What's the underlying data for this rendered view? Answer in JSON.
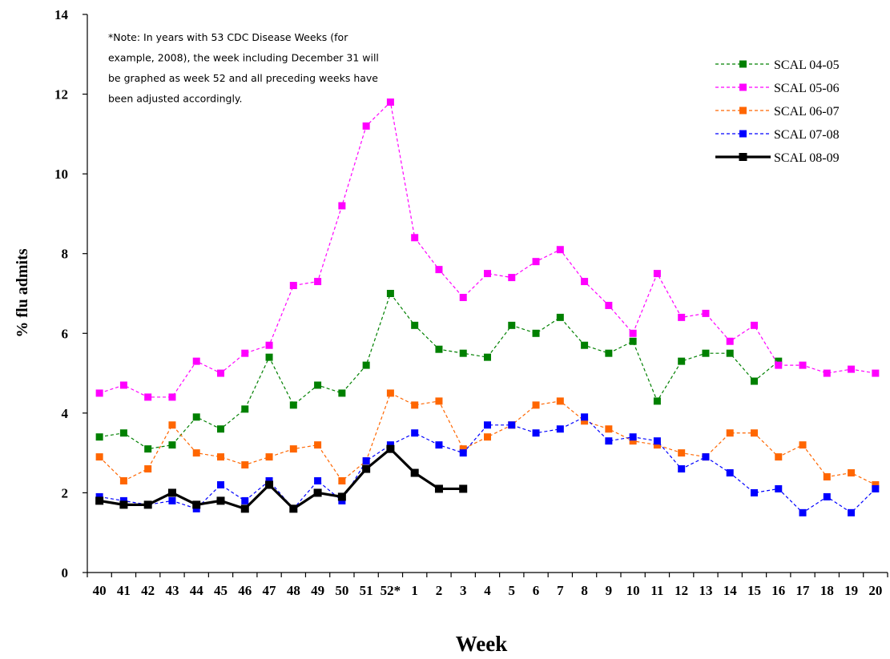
{
  "chart_data": {
    "type": "line",
    "xlabel": "Week",
    "ylabel": "% flu admits",
    "ylim": [
      0,
      14
    ],
    "yticks": [
      "0",
      "2",
      "4",
      "6",
      "8",
      "10",
      "12",
      "14"
    ],
    "categories": [
      "40",
      "41",
      "42",
      "43",
      "44",
      "45",
      "46",
      "47",
      "48",
      "49",
      "50",
      "51",
      "52*",
      "1",
      "2",
      "3",
      "4",
      "5",
      "6",
      "7",
      "8",
      "9",
      "10",
      "11",
      "12",
      "13",
      "14",
      "15",
      "16",
      "17",
      "18",
      "19",
      "20"
    ],
    "grid": false,
    "legend_position": "top-right",
    "note": [
      "*Note: In years with 53 CDC Disease Weeks (for",
      "example, 2008), the week including December 31 will",
      "be graphed as week 52 and all preceding weeks have",
      "been adjusted accordingly."
    ],
    "series": [
      {
        "name": "SCAL 04-05",
        "color": "#008000",
        "style": "dashed",
        "values": [
          3.4,
          3.5,
          3.1,
          3.2,
          3.9,
          3.6,
          4.1,
          5.4,
          4.2,
          4.7,
          4.5,
          5.2,
          7.0,
          6.2,
          5.6,
          5.5,
          5.4,
          6.2,
          6.0,
          6.4,
          5.7,
          5.5,
          5.8,
          4.3,
          5.3,
          5.5,
          5.5,
          4.8,
          5.3,
          null,
          null,
          null,
          null
        ]
      },
      {
        "name": "SCAL 05-06",
        "color": "#ff00ff",
        "style": "dashed",
        "values": [
          4.5,
          4.7,
          4.4,
          4.4,
          5.3,
          5.0,
          5.5,
          5.7,
          7.2,
          7.3,
          9.2,
          11.2,
          11.8,
          8.4,
          7.6,
          6.9,
          7.5,
          7.4,
          7.8,
          8.1,
          7.3,
          6.7,
          6.0,
          7.5,
          6.4,
          6.5,
          5.8,
          6.2,
          5.2,
          5.2,
          5.0,
          5.1,
          5.0
        ]
      },
      {
        "name": "SCAL 06-07",
        "color": "#ff6600",
        "style": "dashed",
        "values": [
          2.9,
          2.3,
          2.6,
          3.7,
          3.0,
          2.9,
          2.7,
          2.9,
          3.1,
          3.2,
          2.3,
          2.8,
          4.5,
          4.2,
          4.3,
          3.1,
          3.4,
          3.7,
          4.2,
          4.3,
          3.8,
          3.6,
          3.3,
          3.2,
          3.0,
          2.9,
          3.5,
          3.5,
          2.9,
          3.2,
          2.4,
          2.5,
          2.2
        ]
      },
      {
        "name": "SCAL 07-08",
        "color": "#0000ff",
        "style": "dashed",
        "values": [
          1.9,
          1.8,
          1.7,
          1.8,
          1.6,
          2.2,
          1.8,
          2.3,
          1.6,
          2.3,
          1.8,
          2.8,
          3.2,
          3.5,
          3.2,
          3.0,
          3.7,
          3.7,
          3.5,
          3.6,
          3.9,
          3.3,
          3.4,
          3.3,
          2.6,
          2.9,
          2.5,
          2.0,
          2.1,
          1.5,
          1.9,
          1.5,
          2.1
        ]
      },
      {
        "name": "SCAL 08-09",
        "color": "#000000",
        "style": "solid",
        "values": [
          1.8,
          1.7,
          1.7,
          2.0,
          1.7,
          1.8,
          1.6,
          2.2,
          1.6,
          2.0,
          1.9,
          2.6,
          3.1,
          2.5,
          2.1,
          2.1,
          null,
          null,
          null,
          null,
          null,
          null,
          null,
          null,
          null,
          null,
          null,
          null,
          null,
          null,
          null,
          null,
          null
        ]
      }
    ]
  }
}
